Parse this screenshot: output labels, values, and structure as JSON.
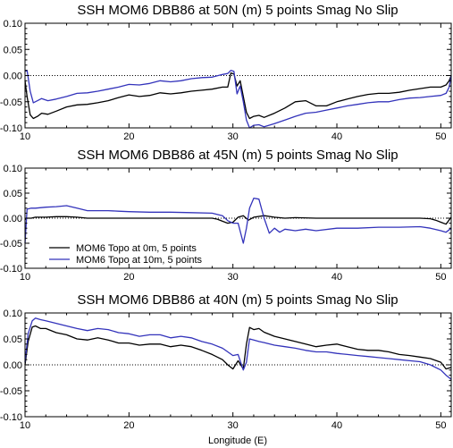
{
  "figure": {
    "xlabel": "Longitude (E)"
  },
  "legend": {
    "entries": [
      {
        "label": "MOM6 Topo at 0m, 5 points",
        "color": "#000000"
      },
      {
        "label": "MOM6 Topo at 10m, 5 points",
        "color": "#3333bb"
      }
    ]
  },
  "chart_data": [
    {
      "type": "line",
      "title": "SSH MOM6 DBB86 at 50N (m) 5 points Smag No Slip",
      "xlim": [
        10,
        51
      ],
      "ylim": [
        -0.1,
        0.1
      ],
      "xticks": [
        10,
        20,
        30,
        40,
        50
      ],
      "yticks": [
        -0.1,
        -0.05,
        0.0,
        0.05,
        0.1
      ],
      "ytick_labels": [
        "-0.10",
        "-0.05",
        "0.00",
        "0.05",
        "0.10"
      ],
      "zero_line": "dotted",
      "series": [
        {
          "name": "MOM6 Topo at 0m, 5 points",
          "color": "#000000",
          "x": [
            10,
            10.2,
            10.5,
            10.8,
            11.2,
            11.6,
            12.2,
            13,
            14,
            15,
            16,
            17,
            18,
            19,
            20,
            21,
            22,
            23,
            24,
            25,
            26,
            27,
            28,
            29,
            29.5,
            29.8,
            30.1,
            30.4,
            30.7,
            31,
            31.3,
            31.6,
            32,
            32.5,
            33,
            34,
            35,
            36,
            37,
            38,
            39,
            40,
            41,
            42,
            43,
            44,
            45,
            46,
            47,
            48,
            49,
            50,
            50.5,
            50.8,
            51
          ],
          "y": [
            -0.01,
            -0.04,
            -0.075,
            -0.082,
            -0.078,
            -0.072,
            -0.074,
            -0.068,
            -0.06,
            -0.056,
            -0.055,
            -0.052,
            -0.048,
            -0.042,
            -0.037,
            -0.04,
            -0.038,
            -0.033,
            -0.035,
            -0.033,
            -0.03,
            -0.028,
            -0.026,
            -0.022,
            -0.022,
            0.005,
            0.003,
            -0.02,
            -0.01,
            -0.04,
            -0.07,
            -0.082,
            -0.078,
            -0.076,
            -0.08,
            -0.072,
            -0.062,
            -0.05,
            -0.048,
            -0.058,
            -0.058,
            -0.05,
            -0.045,
            -0.04,
            -0.036,
            -0.034,
            -0.034,
            -0.032,
            -0.028,
            -0.025,
            -0.022,
            -0.022,
            -0.018,
            -0.01,
            0.0
          ]
        },
        {
          "name": "MOM6 Topo at 10m, 5 points",
          "color": "#3333bb",
          "x": [
            10,
            10.2,
            10.5,
            10.8,
            11.2,
            11.6,
            12.2,
            13,
            14,
            15,
            16,
            17,
            18,
            19,
            20,
            21,
            22,
            23,
            24,
            25,
            26,
            27,
            28,
            29,
            29.5,
            29.8,
            30.1,
            30.4,
            30.7,
            31,
            31.3,
            31.6,
            32,
            32.5,
            33,
            34,
            35,
            36,
            37,
            38,
            39,
            40,
            41,
            42,
            43,
            44,
            45,
            46,
            47,
            48,
            49,
            50,
            50.5,
            50.8,
            51
          ],
          "y": [
            0.008,
            0.01,
            -0.03,
            -0.052,
            -0.048,
            -0.044,
            -0.048,
            -0.045,
            -0.04,
            -0.034,
            -0.033,
            -0.03,
            -0.026,
            -0.022,
            -0.017,
            -0.018,
            -0.015,
            -0.01,
            -0.012,
            -0.01,
            -0.006,
            -0.004,
            -0.003,
            0.002,
            0.004,
            0.01,
            0.008,
            -0.035,
            -0.02,
            -0.05,
            -0.085,
            -0.1,
            -0.095,
            -0.094,
            -0.098,
            -0.092,
            -0.085,
            -0.078,
            -0.072,
            -0.07,
            -0.066,
            -0.062,
            -0.058,
            -0.055,
            -0.052,
            -0.05,
            -0.05,
            -0.046,
            -0.043,
            -0.042,
            -0.04,
            -0.038,
            -0.034,
            -0.022,
            0.0
          ]
        }
      ]
    },
    {
      "type": "line",
      "title": "SSH MOM6 DBB86 at 45N (m) 5 points Smag No Slip",
      "xlim": [
        10,
        51
      ],
      "ylim": [
        -0.1,
        0.1
      ],
      "xticks": [
        10,
        20,
        30,
        40,
        50
      ],
      "yticks": [
        -0.1,
        -0.05,
        0.0,
        0.05,
        0.1
      ],
      "ytick_labels": [
        "-0.10",
        "-0.05",
        "0.00",
        "0.05",
        "0.10"
      ],
      "zero_line": "dotted",
      "series": [
        {
          "name": "MOM6 Topo at 0m, 5 points",
          "color": "#000000",
          "x": [
            10,
            10.2,
            10.6,
            11,
            12,
            13,
            14,
            15,
            16,
            17,
            18,
            20,
            22,
            24,
            26,
            27,
            28,
            28.5,
            29,
            29.5,
            30,
            30.5,
            31,
            31.5,
            32,
            33,
            34,
            35,
            36,
            38,
            40,
            42,
            44,
            46,
            48,
            49,
            49.5,
            50,
            50.5,
            51
          ],
          "y": [
            -0.003,
            0.0,
            0.0,
            0.002,
            0.002,
            0.003,
            0.003,
            0.002,
            0.0,
            0.0,
            0.0,
            0.0,
            0.0,
            0.0,
            0.0,
            0.0,
            0.0,
            -0.002,
            -0.006,
            -0.01,
            -0.008,
            0.002,
            0.005,
            -0.004,
            0.002,
            0.005,
            0.002,
            0.0,
            0.001,
            0.0,
            0.0,
            0.0,
            0.0,
            0.0,
            0.0,
            -0.001,
            -0.004,
            -0.008,
            -0.012,
            0.002
          ]
        },
        {
          "name": "MOM6 Topo at 10m, 5 points",
          "color": "#3333bb",
          "x": [
            10,
            10.2,
            10.6,
            11,
            12,
            13,
            14,
            15,
            16,
            17,
            18,
            19,
            20,
            22,
            24,
            26,
            28,
            29,
            29.5,
            30,
            30.5,
            31,
            31.3,
            31.6,
            32,
            32.5,
            33,
            33.5,
            34,
            34.5,
            35,
            36,
            37,
            38,
            40,
            42,
            44,
            46,
            48,
            49,
            50,
            50.5,
            51
          ],
          "y": [
            -0.05,
            0.018,
            0.02,
            0.02,
            0.022,
            0.023,
            0.025,
            0.02,
            0.015,
            0.015,
            0.015,
            0.014,
            0.013,
            0.012,
            0.012,
            0.011,
            0.01,
            0.005,
            -0.005,
            -0.01,
            -0.01,
            -0.05,
            -0.02,
            0.02,
            0.04,
            0.038,
            0.0,
            -0.03,
            -0.02,
            -0.028,
            -0.022,
            -0.025,
            -0.022,
            -0.025,
            -0.02,
            -0.02,
            -0.018,
            -0.018,
            -0.017,
            -0.02,
            -0.025,
            -0.028,
            -0.02
          ]
        }
      ]
    },
    {
      "type": "line",
      "title": "SSH MOM6 DBB86 at 40N (m) 5 points Smag No Slip",
      "xlabel": "Longitude (E)",
      "xlim": [
        10,
        51
      ],
      "ylim": [
        -0.1,
        0.1
      ],
      "xticks": [
        10,
        20,
        30,
        40,
        50
      ],
      "yticks": [
        -0.1,
        -0.05,
        0.0,
        0.05,
        0.1
      ],
      "ytick_labels": [
        "-0.10",
        "-0.05",
        "0.00",
        "0.05",
        "0.10"
      ],
      "zero_line": "dotted",
      "series": [
        {
          "name": "MOM6 Topo at 0m, 5 points",
          "color": "#000000",
          "x": [
            10,
            10.3,
            10.7,
            11,
            11.5,
            12,
            13,
            14,
            15,
            16,
            17,
            18,
            19,
            20,
            21,
            22,
            23,
            24,
            25,
            26,
            27,
            28,
            29,
            29.5,
            30,
            30.5,
            31,
            31.3,
            31.6,
            32,
            32.5,
            33,
            34,
            35,
            36,
            37,
            38,
            39,
            40,
            41,
            42,
            43,
            44,
            45,
            46,
            47,
            48,
            49,
            50,
            50.5,
            51
          ],
          "y": [
            0.0,
            0.045,
            0.073,
            0.075,
            0.07,
            0.07,
            0.062,
            0.058,
            0.05,
            0.048,
            0.052,
            0.048,
            0.042,
            0.042,
            0.038,
            0.04,
            0.04,
            0.035,
            0.038,
            0.035,
            0.028,
            0.02,
            0.01,
            0.0,
            -0.008,
            0.008,
            -0.008,
            0.04,
            0.072,
            0.068,
            0.07,
            0.063,
            0.055,
            0.05,
            0.045,
            0.04,
            0.035,
            0.038,
            0.04,
            0.035,
            0.03,
            0.028,
            0.028,
            0.025,
            0.02,
            0.018,
            0.015,
            0.012,
            0.005,
            -0.008,
            -0.005
          ]
        },
        {
          "name": "MOM6 Topo at 10m, 5 points",
          "color": "#3333bb",
          "x": [
            10,
            10.3,
            10.7,
            11,
            11.5,
            12,
            13,
            14,
            15,
            16,
            17,
            18,
            19,
            20,
            21,
            22,
            23,
            24,
            25,
            26,
            27,
            28,
            29,
            29.5,
            30,
            30.5,
            31,
            31.3,
            31.6,
            32,
            32.5,
            33,
            34,
            35,
            36,
            37,
            38,
            39,
            40,
            41,
            42,
            43,
            44,
            45,
            46,
            47,
            48,
            49,
            50,
            50.5,
            51
          ],
          "y": [
            0.005,
            0.06,
            0.085,
            0.09,
            0.087,
            0.085,
            0.08,
            0.075,
            0.07,
            0.066,
            0.07,
            0.068,
            0.062,
            0.06,
            0.055,
            0.058,
            0.058,
            0.052,
            0.055,
            0.052,
            0.045,
            0.04,
            0.032,
            0.025,
            0.018,
            0.02,
            -0.01,
            0.005,
            0.05,
            0.048,
            0.045,
            0.043,
            0.038,
            0.035,
            0.032,
            0.028,
            0.025,
            0.025,
            0.022,
            0.02,
            0.018,
            0.016,
            0.014,
            0.012,
            0.01,
            0.008,
            0.006,
            0.0,
            -0.01,
            -0.02,
            -0.028
          ]
        }
      ]
    }
  ]
}
